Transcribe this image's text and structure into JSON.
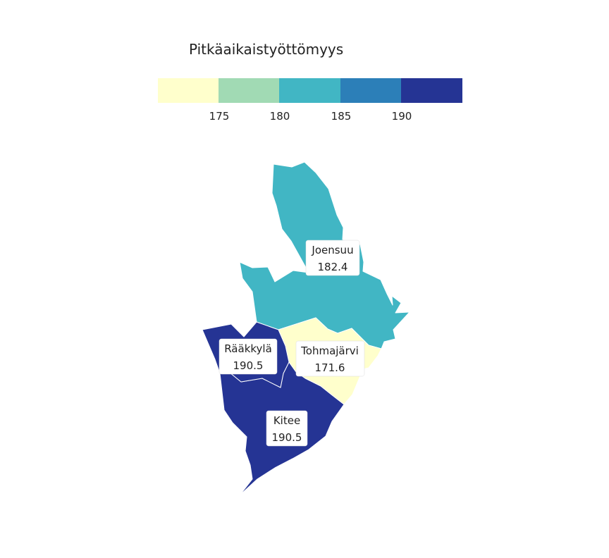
{
  "legend": {
    "title": "Pitkäaikaistyöttömyys",
    "colors": [
      "#ffffcc",
      "#a1dab4",
      "#41b6c4",
      "#2c7fb8",
      "#253494"
    ],
    "ticks": [
      "175",
      "180",
      "185",
      "190"
    ]
  },
  "regions": [
    {
      "id": "joensuu",
      "name": "Joensuu",
      "value": "182.4",
      "color": "#41b6c4"
    },
    {
      "id": "tohmajarvi",
      "name": "Tohmajärvi",
      "value": "171.6",
      "color": "#ffffcc"
    },
    {
      "id": "raakkyla",
      "name": "Rääkkylä",
      "value": "190.5",
      "color": "#253494"
    },
    {
      "id": "kitee",
      "name": "Kitee",
      "value": "190.5",
      "color": "#253494"
    }
  ]
}
